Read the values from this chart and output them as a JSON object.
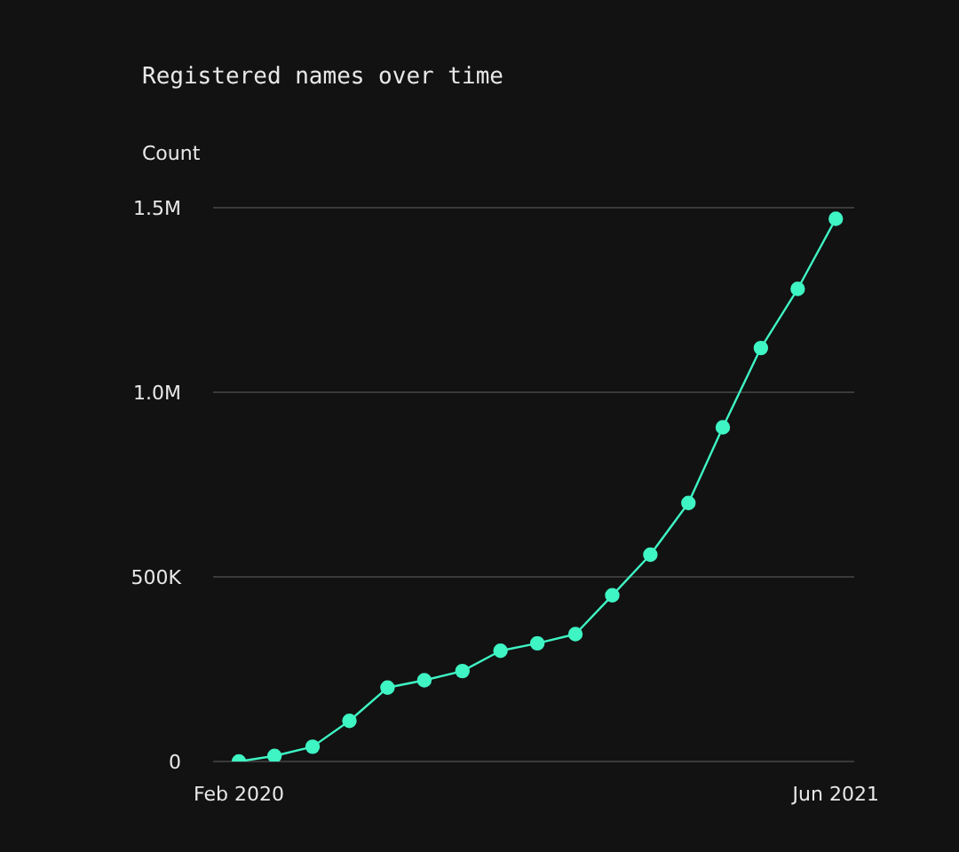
{
  "chart_data": {
    "type": "line",
    "title": "Registered names over time",
    "ylabel": "Count",
    "x": [
      "2020-02",
      "2020-03",
      "2020-04",
      "2020-05",
      "2020-06",
      "2020-07",
      "2020-08",
      "2020-09",
      "2020-10",
      "2020-11",
      "2020-12",
      "2021-01",
      "2021-02",
      "2021-03",
      "2021-04",
      "2021-05",
      "2021-06"
    ],
    "series": [
      {
        "color": "#3ff5c4",
        "values": [
          0,
          15000,
          40000,
          110000,
          200000,
          220000,
          245000,
          300000,
          320000,
          345000,
          450000,
          560000,
          700000,
          905000,
          1120000,
          1280000,
          1470000
        ]
      }
    ],
    "xlim": [
      "2020-01-11",
      "2021-06-16"
    ],
    "xticks": [
      {
        "value": "2020-02",
        "label": "Feb 2020"
      },
      {
        "value": "2021-06",
        "label": "Jun 2021"
      }
    ],
    "ylim": [
      0,
      1500000
    ],
    "yticks": [
      {
        "value": 0,
        "label": "0"
      },
      {
        "value": 500000,
        "label": "500K"
      },
      {
        "value": 1000000,
        "label": "1.0M"
      },
      {
        "value": 1500000,
        "label": "1.5M"
      }
    ],
    "grid": "y",
    "marker": "circle",
    "line_style": "solid",
    "legend": false
  }
}
